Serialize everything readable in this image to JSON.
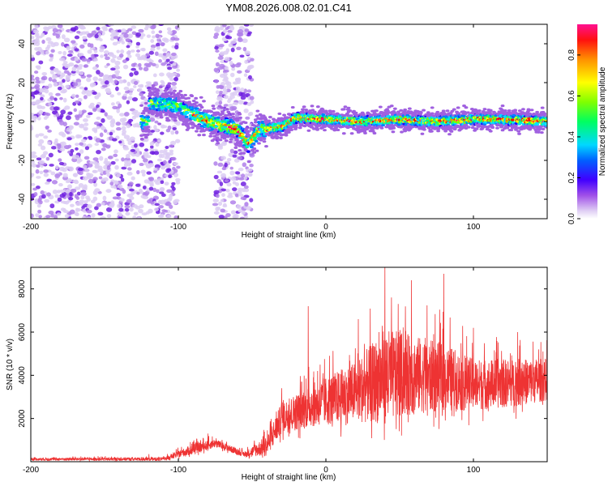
{
  "title": "YM08.2026.008.02.01.C41",
  "chart_data": [
    {
      "type": "heatmap",
      "xlabel": "Height of straight line (km)",
      "ylabel": "Frequency (Hz)",
      "xlim": [
        -200,
        150
      ],
      "ylim": [
        -50,
        50
      ],
      "x_ticks": [
        -200,
        -100,
        0,
        100
      ],
      "x_tick_labels": [
        "-200",
        "-100",
        "0",
        "100"
      ],
      "y_ticks": [
        -40,
        -20,
        0,
        20,
        40
      ],
      "y_tick_labels": [
        "-40",
        "-20",
        "0",
        "20",
        "40"
      ],
      "colorbar": {
        "label": "Normalized spectral amplitude",
        "range": [
          0,
          0.95
        ],
        "ticks": [
          0,
          0.2,
          0.4,
          0.6,
          0.8
        ],
        "tick_labels": [
          "0.0",
          "0.2",
          "0.4",
          "0.6",
          "0.8"
        ],
        "colormap": [
          "#d8c8f0",
          "#a060e0",
          "#7010e0",
          "#2000ff",
          "#0080ff",
          "#00e0ff",
          "#00ff80",
          "#80ff00",
          "#ffff00",
          "#ff8000",
          "#ff0000",
          "#ff0080"
        ]
      },
      "band_center": [
        {
          "x": -120,
          "y": 10
        },
        {
          "x": -100,
          "y": 8
        },
        {
          "x": -90,
          "y": 4
        },
        {
          "x": -80,
          "y": 0
        },
        {
          "x": -70,
          "y": -2
        },
        {
          "x": -60,
          "y": -4
        },
        {
          "x": -52,
          "y": -12
        },
        {
          "x": -45,
          "y": -4
        },
        {
          "x": -30,
          "y": -3
        },
        {
          "x": -20,
          "y": 2
        },
        {
          "x": 0,
          "y": 1
        },
        {
          "x": 25,
          "y": 0
        },
        {
          "x": 50,
          "y": 1
        },
        {
          "x": 75,
          "y": 0
        },
        {
          "x": 100,
          "y": 1
        },
        {
          "x": 125,
          "y": 1
        },
        {
          "x": 150,
          "y": 0
        }
      ],
      "scatter_regions": [
        {
          "x_range": [
            -200,
            -100
          ],
          "density": "high"
        },
        {
          "x_range": [
            -75,
            -50
          ],
          "density": "medium"
        }
      ]
    },
    {
      "type": "line",
      "xlabel": "Height of straight line (km)",
      "ylabel": "SNR (10 * v/v)",
      "xlim": [
        -200,
        150
      ],
      "ylim": [
        0,
        9000
      ],
      "x_ticks": [
        -200,
        -100,
        0,
        100
      ],
      "x_tick_labels": [
        "-200",
        "-100",
        "0",
        "100"
      ],
      "y_ticks": [
        2000,
        4000,
        6000,
        8000
      ],
      "y_tick_labels": [
        "2000",
        "4000",
        "6000",
        "8000"
      ],
      "color": "#ee3333",
      "envelope": [
        {
          "x": -200,
          "base": 100,
          "amp": 150
        },
        {
          "x": -110,
          "base": 100,
          "amp": 200
        },
        {
          "x": -90,
          "base": 500,
          "amp": 600
        },
        {
          "x": -75,
          "base": 800,
          "amp": 500
        },
        {
          "x": -55,
          "base": 300,
          "amp": 300
        },
        {
          "x": -40,
          "base": 600,
          "amp": 1200
        },
        {
          "x": -30,
          "base": 1800,
          "amp": 1800
        },
        {
          "x": -10,
          "base": 2300,
          "amp": 2500
        },
        {
          "x": 20,
          "base": 2800,
          "amp": 3500
        },
        {
          "x": 40,
          "base": 3300,
          "amp": 5500
        },
        {
          "x": 60,
          "base": 3500,
          "amp": 4500
        },
        {
          "x": 80,
          "base": 3400,
          "amp": 4000
        },
        {
          "x": 100,
          "base": 3200,
          "amp": 3000
        },
        {
          "x": 125,
          "base": 3300,
          "amp": 2800
        },
        {
          "x": 150,
          "base": 3500,
          "amp": 2500
        }
      ],
      "peaks": [
        {
          "x": -120,
          "y": 350
        },
        {
          "x": -80,
          "y": 1300
        },
        {
          "x": -30,
          "y": 3400
        },
        {
          "x": -12,
          "y": 7200
        },
        {
          "x": 22,
          "y": 6600
        },
        {
          "x": 40,
          "y": 9000
        },
        {
          "x": 58,
          "y": 8400
        },
        {
          "x": 80,
          "y": 8700
        },
        {
          "x": 100,
          "y": 6200
        },
        {
          "x": 130,
          "y": 6000
        }
      ]
    }
  ]
}
